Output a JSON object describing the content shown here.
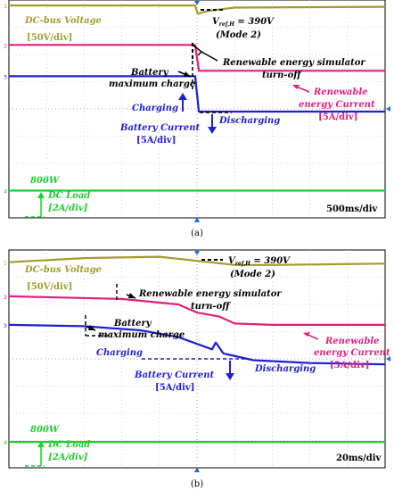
{
  "chart_data": [
    {
      "type": "line",
      "subtitle": "(a)",
      "time_div": "500ms/div",
      "annotations": {
        "dc_bus": "DC-bus Voltage",
        "dc_bus_scale": "[50V/div]",
        "vref_main": "V",
        "vref_sub": "ref,H",
        "vref_val": " = 390V",
        "mode": "(Mode 2)",
        "renewable_sim_1": "Renewable energy simulator",
        "renewable_sim_2": "turn-off",
        "battery_max_1": "Battery",
        "battery_max_2": "maximum charge",
        "renewable_current_1": "Renewable",
        "renewable_current_2": "energy Current",
        "renewable_current_scale": "[5A/div]",
        "charging": "Charging",
        "discharging": "Discharging",
        "battery_current": "Battery  Current",
        "battery_current_scale": "[5A/div]",
        "load_power": "800W",
        "dc_load": "DC Load",
        "dc_load_scale": "[2A/div]"
      },
      "channel_markers": [
        "1",
        "2",
        "3",
        "4"
      ],
      "series": [
        {
          "name": "DC-bus Voltage",
          "color": "#a39b2e",
          "divs": [
            [
              0,
              7.8
            ],
            [
              4.95,
              7.8
            ],
            [
              5.02,
              7.5
            ],
            [
              5.3,
              7.6
            ],
            [
              6,
              7.72
            ],
            [
              10,
              7.75
            ]
          ]
        },
        {
          "name": "Renewable energy Current",
          "color": "#e0207a",
          "divs": [
            [
              0,
              6.35
            ],
            [
              4.95,
              6.35
            ],
            [
              5.05,
              5.4
            ],
            [
              10,
              5.4
            ]
          ]
        },
        {
          "name": "Battery Current",
          "color": "#1f1fd6",
          "divs": [
            [
              0,
              5.2
            ],
            [
              4.95,
              5.2
            ],
            [
              5.05,
              3.9
            ],
            [
              10,
              3.9
            ]
          ]
        },
        {
          "name": "DC Load",
          "color": "#22cc33",
          "divs": [
            [
              0,
              1.0
            ],
            [
              10,
              1.0
            ]
          ]
        }
      ]
    },
    {
      "type": "line",
      "subtitle": "(b)",
      "time_div": "20ms/div",
      "annotations": {
        "dc_bus": "DC-bus Voltage",
        "dc_bus_scale": "[50V/div]",
        "vref_main": "V",
        "vref_sub": "ref,H",
        "vref_val": " = 390V",
        "mode": "(Mode 2)",
        "renewable_sim_1": "Renewable energy simulator",
        "renewable_sim_2": "turn-off",
        "battery_max_1": "Battery",
        "battery_max_2": "maximum charge",
        "renewable_current_1": "Renewable",
        "renewable_current_2": "energy Current",
        "renewable_current_scale": "[5A/div]",
        "charging": "Charging",
        "discharging": "Discharging",
        "battery_current": "Battery  Current",
        "battery_current_scale": "[5A/div]",
        "load_power": "800W",
        "dc_load": "DC Load",
        "dc_load_scale": "[2A/div]"
      },
      "channel_markers": [
        "1",
        "2",
        "3",
        "4"
      ],
      "series": [
        {
          "name": "DC-bus Voltage",
          "color": "#a39b2e",
          "divs": [
            [
              0,
              7.55
            ],
            [
              2,
              7.7
            ],
            [
              4,
              7.75
            ],
            [
              5,
              7.6
            ],
            [
              6,
              7.45
            ],
            [
              7,
              7.45
            ],
            [
              10,
              7.5
            ]
          ]
        },
        {
          "name": "Renewable energy Current",
          "color": "#e0207a",
          "divs": [
            [
              0,
              6.3
            ],
            [
              3,
              6.2
            ],
            [
              4.5,
              6.0
            ],
            [
              5,
              5.7
            ],
            [
              5.6,
              5.55
            ],
            [
              6,
              5.3
            ],
            [
              7,
              5.25
            ],
            [
              10,
              5.25
            ]
          ]
        },
        {
          "name": "Battery Current",
          "color": "#1f1fd6",
          "divs": [
            [
              0,
              5.25
            ],
            [
              2,
              5.2
            ],
            [
              3.5,
              5.05
            ],
            [
              4.5,
              4.8
            ],
            [
              5,
              4.55
            ],
            [
              5.4,
              4.35
            ],
            [
              5.5,
              4.6
            ],
            [
              5.7,
              4.2
            ],
            [
              6.5,
              3.95
            ],
            [
              8,
              3.85
            ],
            [
              10,
              3.8
            ]
          ]
        },
        {
          "name": "DC Load",
          "color": "#22cc33",
          "divs": [
            [
              0,
              0.95
            ],
            [
              10,
              0.95
            ]
          ]
        }
      ]
    }
  ]
}
